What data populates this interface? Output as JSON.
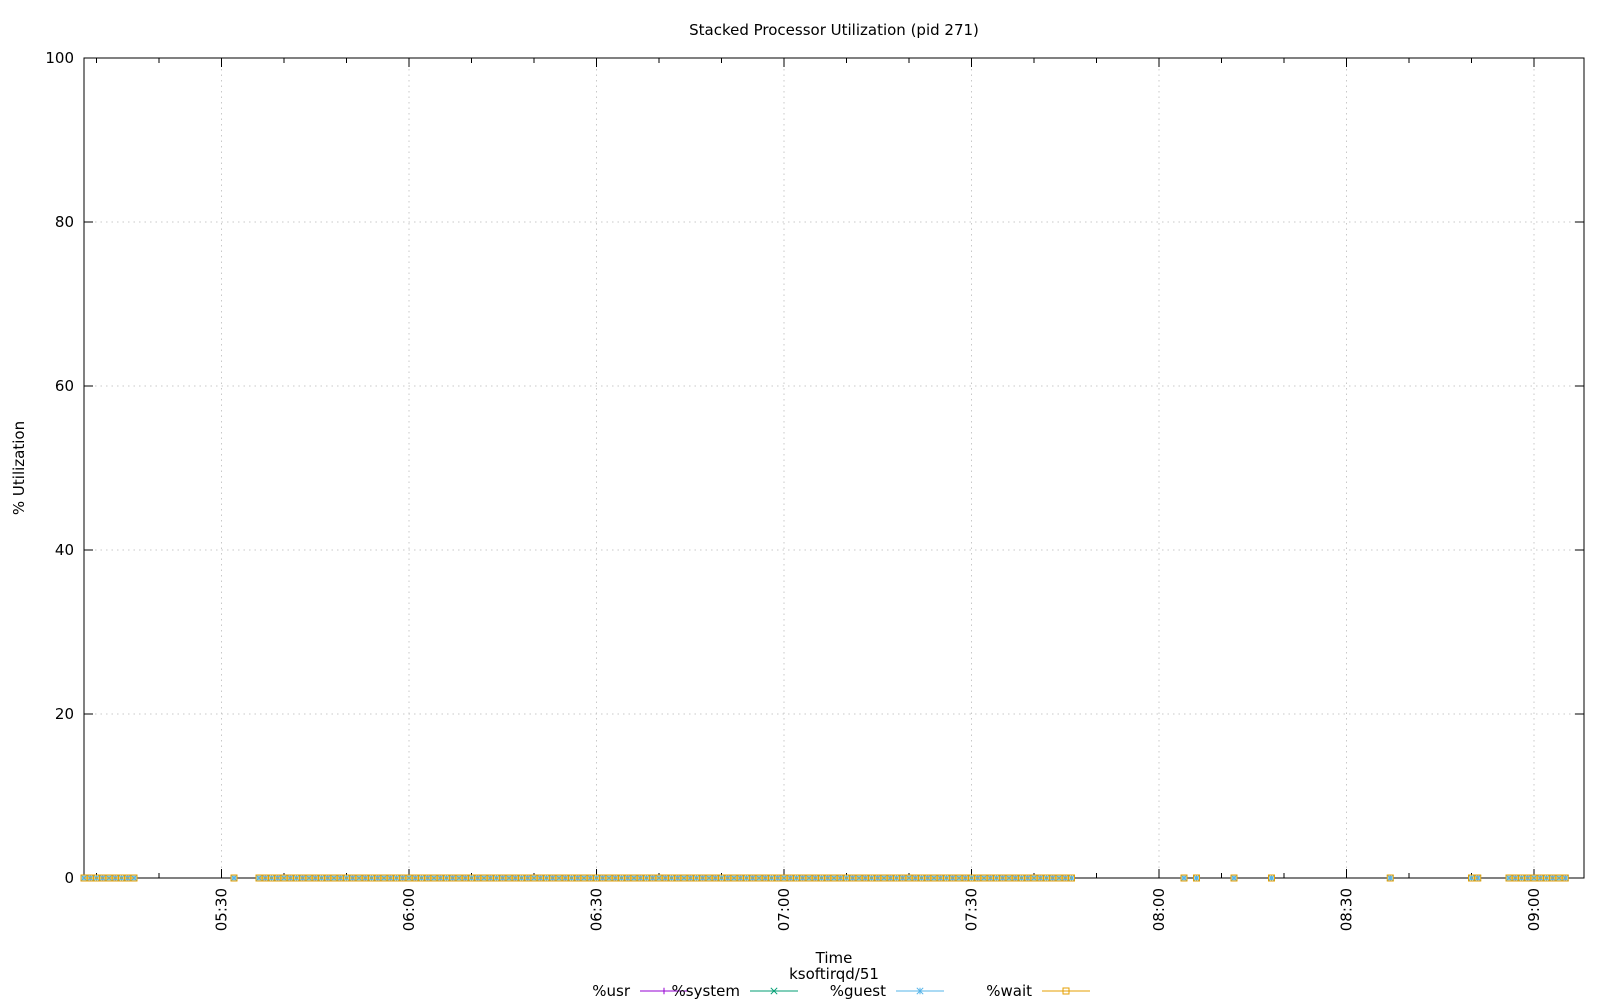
{
  "chart_data": {
    "type": "line",
    "title": "Stacked Processor Utilization (pid 271)",
    "xlabel": "Time",
    "subtitle": "ksoftirqd/51",
    "ylabel": "% Utilization",
    "x_range": [
      "05:08",
      "09:08"
    ],
    "ylim": [
      0,
      100
    ],
    "y_ticks": [
      0,
      20,
      40,
      60,
      80,
      100
    ],
    "x_ticks": [
      "05:30",
      "06:00",
      "06:30",
      "07:00",
      "07:30",
      "08:00",
      "08:30",
      "09:00"
    ],
    "grid": true,
    "legend_position": "bottom-center",
    "series": [
      {
        "name": "%usr",
        "color": "#9400d3",
        "marker": "plus"
      },
      {
        "name": "%system",
        "color": "#009e73",
        "marker": "cross"
      },
      {
        "name": "%guest",
        "color": "#56b4e9",
        "marker": "star"
      },
      {
        "name": "%wait",
        "color": "#e69f00",
        "marker": "square"
      }
    ],
    "all_values": 0,
    "sample_times": [
      "05:08",
      "05:09",
      "05:10",
      "05:11",
      "05:12",
      "05:13",
      "05:14",
      "05:15",
      "05:16",
      "05:32",
      "05:36",
      "05:37",
      "05:38",
      "05:39",
      "05:40",
      "05:41",
      "05:42",
      "05:43",
      "05:44",
      "05:45",
      "05:46",
      "05:47",
      "05:48",
      "05:49",
      "05:50",
      "05:51",
      "05:52",
      "05:53",
      "05:54",
      "05:55",
      "05:56",
      "05:57",
      "05:58",
      "05:59",
      "06:00",
      "06:01",
      "06:02",
      "06:03",
      "06:04",
      "06:05",
      "06:06",
      "06:07",
      "06:08",
      "06:09",
      "06:10",
      "06:11",
      "06:12",
      "06:13",
      "06:14",
      "06:15",
      "06:16",
      "06:17",
      "06:18",
      "06:19",
      "06:20",
      "06:21",
      "06:22",
      "06:23",
      "06:24",
      "06:25",
      "06:26",
      "06:27",
      "06:28",
      "06:29",
      "06:30",
      "06:31",
      "06:32",
      "06:33",
      "06:34",
      "06:35",
      "06:36",
      "06:37",
      "06:38",
      "06:39",
      "06:40",
      "06:41",
      "06:42",
      "06:43",
      "06:44",
      "06:45",
      "06:46",
      "06:47",
      "06:48",
      "06:49",
      "06:50",
      "06:51",
      "06:52",
      "06:53",
      "06:54",
      "06:55",
      "06:56",
      "06:57",
      "06:58",
      "06:59",
      "07:00",
      "07:01",
      "07:02",
      "07:03",
      "07:04",
      "07:05",
      "07:06",
      "07:07",
      "07:08",
      "07:09",
      "07:10",
      "07:11",
      "07:12",
      "07:13",
      "07:14",
      "07:15",
      "07:16",
      "07:17",
      "07:18",
      "07:19",
      "07:20",
      "07:21",
      "07:22",
      "07:23",
      "07:24",
      "07:25",
      "07:26",
      "07:27",
      "07:28",
      "07:29",
      "07:30",
      "07:31",
      "07:32",
      "07:33",
      "07:34",
      "07:35",
      "07:36",
      "07:37",
      "07:38",
      "07:39",
      "07:40",
      "07:41",
      "07:42",
      "07:43",
      "07:44",
      "07:45",
      "07:46",
      "08:04",
      "08:06",
      "08:12",
      "08:18",
      "08:37",
      "08:50",
      "08:51",
      "08:56",
      "08:57",
      "08:58",
      "08:59",
      "09:00",
      "09:01",
      "09:02",
      "09:03",
      "09:04",
      "09:05"
    ]
  }
}
